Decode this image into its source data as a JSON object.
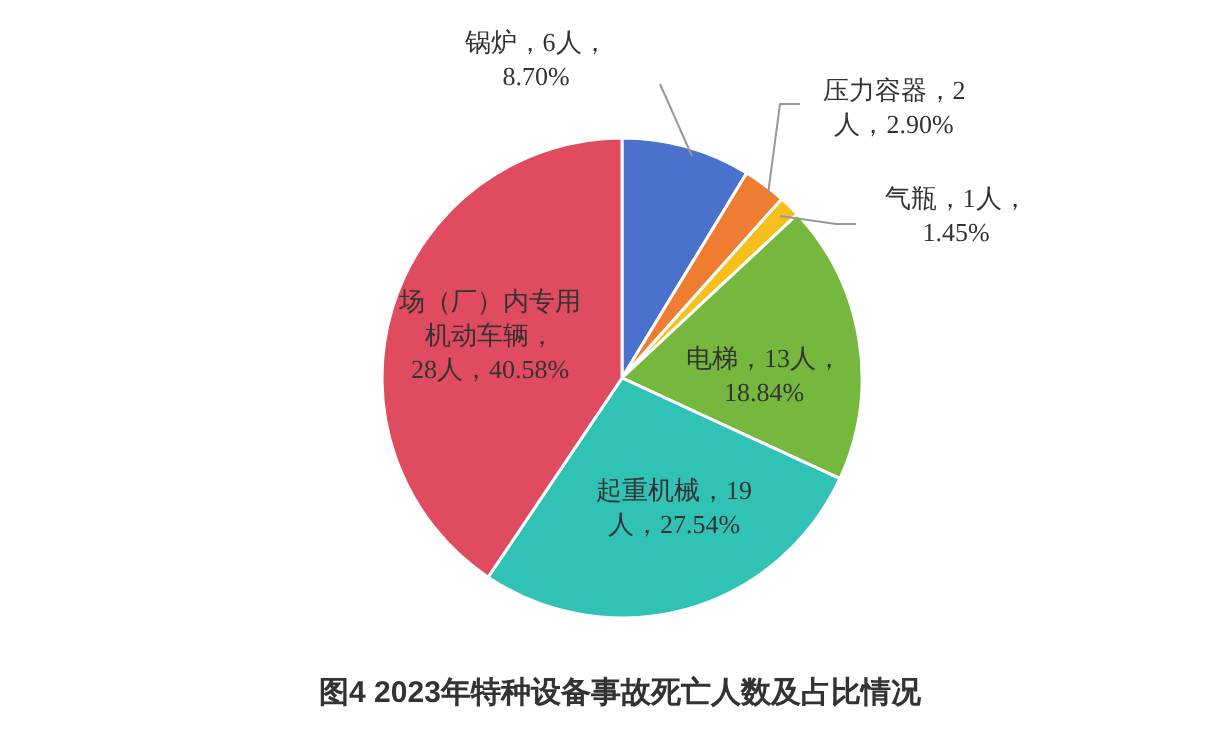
{
  "chart_data": {
    "type": "pie",
    "title": "图4  2023年特种设备事故死亡人数及占比情况",
    "categories": [
      "锅炉",
      "压力容器",
      "气瓶",
      "电梯",
      "起重机械",
      "场（厂）内专用机动车辆"
    ],
    "values": [
      6,
      2,
      1,
      13,
      19,
      28
    ],
    "colors": [
      "#4a72cd",
      "#ee7d31",
      "#f6c01c",
      "#76b83e",
      "#30c2b4",
      "#e04b5f"
    ],
    "value_labels": [
      "，6人，8.70%",
      "，2人，2.90%",
      "，1人，1.45%",
      "，13人，18.84%",
      "，19人，27.54%",
      "，28人，40.58%"
    ]
  }
}
